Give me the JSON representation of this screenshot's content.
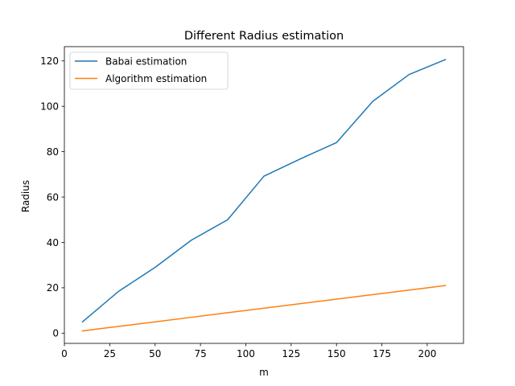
{
  "chart_data": {
    "type": "line",
    "title": "Different Radius estimation",
    "xlabel": "m",
    "ylabel": "Radius",
    "xlim": [
      0,
      220
    ],
    "ylim": [
      -4.5,
      126.3
    ],
    "xticks": [
      0,
      25,
      50,
      75,
      100,
      125,
      150,
      175,
      200
    ],
    "yticks": [
      0,
      20,
      40,
      60,
      80,
      100,
      120
    ],
    "grid": false,
    "legend_position": "top-left",
    "x": [
      10,
      30,
      50,
      70,
      90,
      110,
      130,
      150,
      170,
      190,
      210
    ],
    "series": [
      {
        "name": "Babai estimation",
        "color": "#1f77b4",
        "values": [
          5.0,
          18.5,
          29.0,
          41.0,
          50.0,
          69.2,
          76.8,
          84.0,
          102.2,
          114.0,
          120.6
        ]
      },
      {
        "name": "Algorithm estimation",
        "color": "#ff7f0e",
        "values": [
          1.0,
          3.0,
          5.0,
          7.0,
          9.0,
          11.0,
          13.0,
          15.0,
          17.0,
          19.0,
          21.0
        ]
      }
    ]
  }
}
